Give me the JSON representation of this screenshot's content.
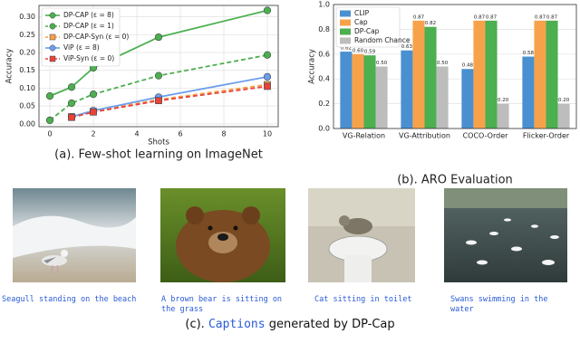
{
  "chart_data": [
    {
      "type": "line",
      "x_label": "Shots",
      "y_label": "Accuracy",
      "x": [
        0,
        1,
        2,
        5,
        10
      ],
      "xlim": [
        -0.5,
        10.5
      ],
      "xticks": [
        0,
        2,
        4,
        6,
        8,
        10
      ],
      "ylim": [
        -0.008,
        0.332
      ],
      "yticks": [
        {
          "value": 0,
          "label": "0.00"
        },
        {
          "value": 0.05,
          "label": "0.05"
        },
        {
          "value": 0.1,
          "label": "0.10"
        },
        {
          "value": 0.15,
          "label": "0.15"
        },
        {
          "value": 0.2,
          "label": "0.20"
        },
        {
          "value": 0.25,
          "label": "0.25"
        },
        {
          "value": 0.3,
          "label": "0.30"
        }
      ],
      "grid": true,
      "legend": "upper left",
      "series": [
        {
          "name": "DP-CAP (ε = 8)",
          "color": "#4caf50",
          "linestyle": "solid",
          "marker": "circle",
          "values": [
            0.078,
            0.103,
            0.157,
            0.243,
            0.318
          ]
        },
        {
          "name": "DP-CAP (ε = 1)",
          "color": "#4caf50",
          "linestyle": "dashed",
          "marker": "circle",
          "values": [
            0.01,
            0.058,
            0.083,
            0.135,
            0.193
          ]
        },
        {
          "name": "DP-CAP-Syn (ε = 0)",
          "color": "#f5a04a",
          "linestyle": "dashed",
          "marker": "square",
          "values": [
            null,
            0.02,
            0.035,
            0.068,
            0.11
          ]
        },
        {
          "name": "ViP (ε = 8)",
          "color": "#6d9eeb",
          "linestyle": "solid",
          "marker": "circle",
          "values": [
            null,
            0.02,
            0.037,
            0.075,
            0.132
          ]
        },
        {
          "name": "ViP-Syn (ε = 0)",
          "color": "#e8433a",
          "linestyle": "dashed",
          "marker": "square",
          "values": [
            null,
            0.018,
            0.033,
            0.065,
            0.105
          ]
        }
      ]
    },
    {
      "type": "bar",
      "y_label": "Accuracy",
      "categories": [
        "VG-Relation",
        "VG-Attribution",
        "COCO-Order",
        "Flicker-Order"
      ],
      "ylim": [
        0,
        1
      ],
      "yticks": [
        {
          "value": 0,
          "label": "0.0"
        },
        {
          "value": 0.2,
          "label": "0.2"
        },
        {
          "value": 0.4,
          "label": "0.4"
        },
        {
          "value": 0.6,
          "label": "0.6"
        },
        {
          "value": 0.8,
          "label": "0.8"
        },
        {
          "value": 1,
          "label": "1.0"
        }
      ],
      "grid": true,
      "legend": "upper left",
      "series": [
        {
          "name": "CLIP",
          "color": "#4a90d0",
          "values": [
            0.62,
            0.63,
            0.48,
            0.58
          ],
          "value_labels": [
            "0.62",
            "0.63",
            "0.48",
            "0.58"
          ]
        },
        {
          "name": "Cap",
          "color": "#f7a24b",
          "values": [
            0.6,
            0.87,
            0.87,
            0.87
          ],
          "value_labels": [
            "0.60",
            "0.87",
            "0.87",
            "0.87"
          ]
        },
        {
          "name": "DP-Cap",
          "color": "#4caf50",
          "values": [
            0.59,
            0.82,
            0.87,
            0.87
          ],
          "value_labels": [
            "0.59",
            "0.82",
            "0.87",
            "0.87"
          ]
        },
        {
          "name": "Random Chance",
          "color": "#bdbdbd",
          "values": [
            0.5,
            0.5,
            0.2,
            0.2
          ],
          "value_labels": [
            "0.50",
            "0.50",
            "0.20",
            "0.20"
          ]
        }
      ]
    }
  ],
  "figure": {
    "subcaptions": [
      "(a). Few-shot learning on ImageNet",
      "(b). ARO Evaluation"
    ],
    "images": [
      {
        "caption": "Seagull standing on the beach"
      },
      {
        "caption": "A brown bear is sitting on the grass"
      },
      {
        "caption": "Cat sitting in toilet"
      },
      {
        "caption": "Swans swimming in the water"
      }
    ],
    "caption_c": {
      "prefix": "(c).",
      "highlight": "Captions",
      "suffix": "generated by DP-Cap"
    }
  }
}
